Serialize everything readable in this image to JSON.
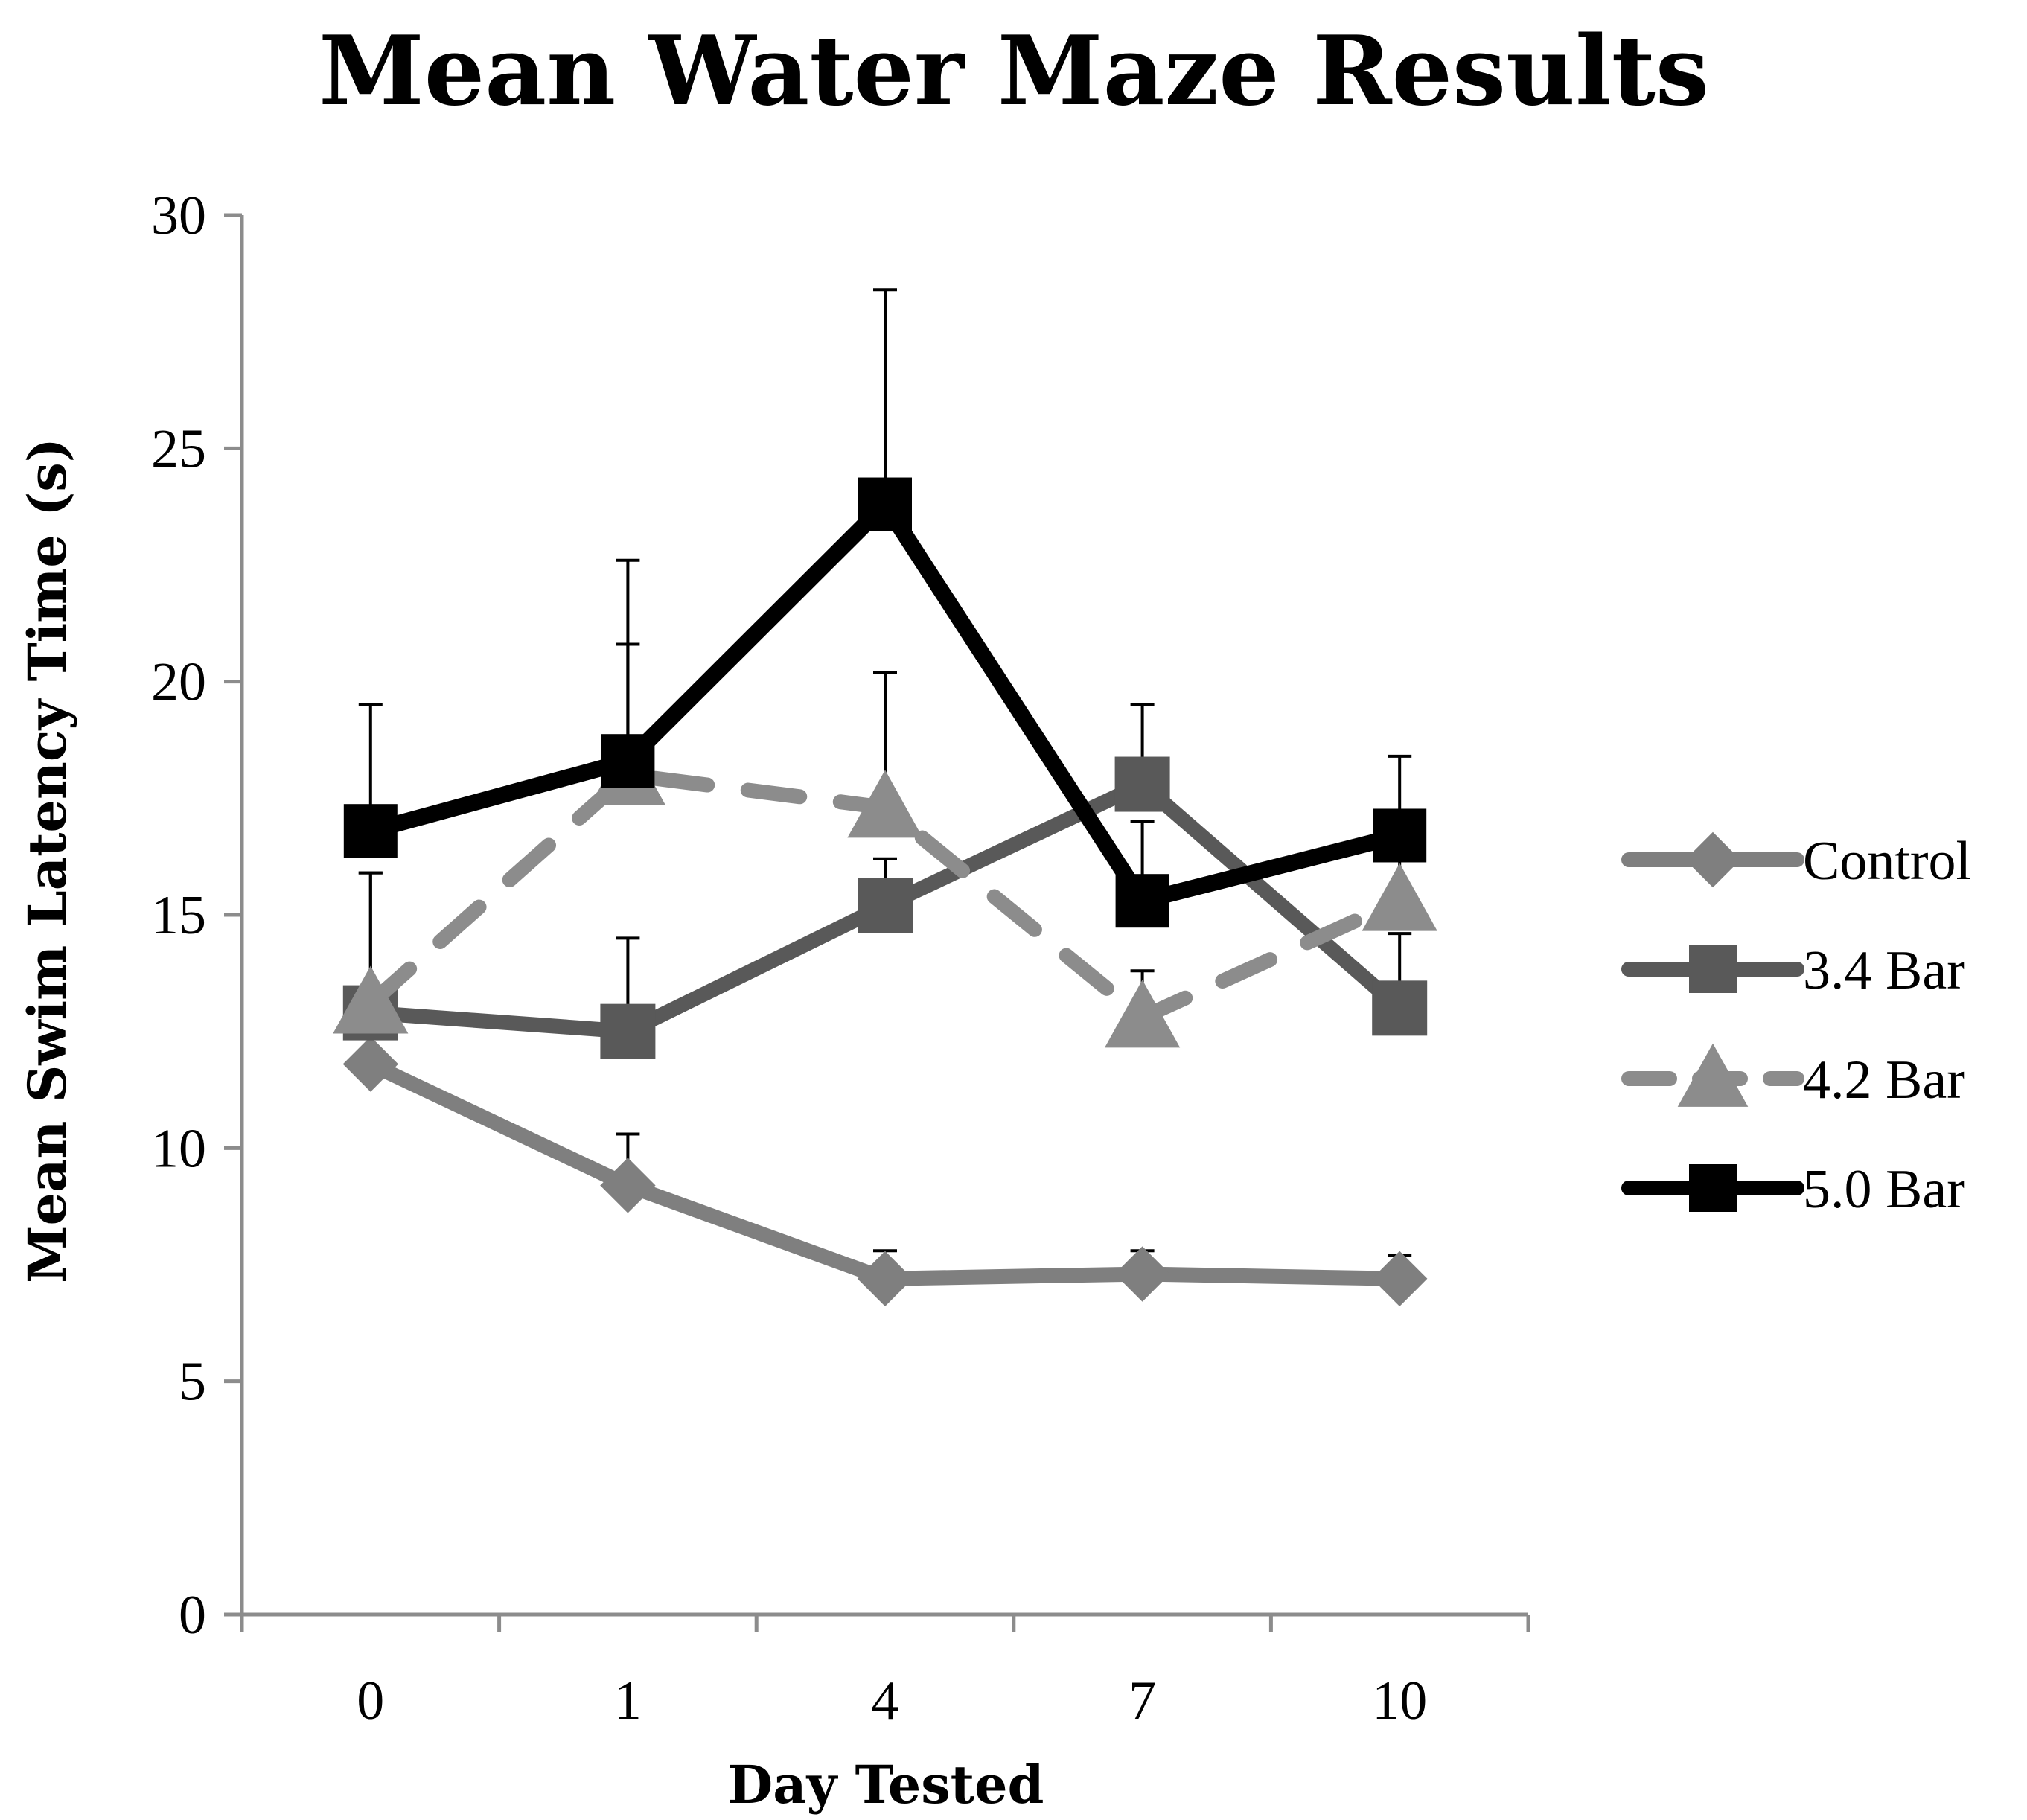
{
  "chart_data": {
    "type": "line",
    "title": "Mean Water Maze Results",
    "xlabel": "Day Tested",
    "ylabel": "Mean Swim Latency Time (s)",
    "categories": [
      "0",
      "1",
      "4",
      "7",
      "10"
    ],
    "ylim": [
      0,
      30
    ],
    "y_ticks": [
      0,
      5,
      10,
      15,
      20,
      25,
      30
    ],
    "y_tick_labels": [
      "0",
      "5",
      "10",
      "15",
      "20",
      "25",
      "30"
    ],
    "grid": false,
    "legend_position": "right",
    "series": [
      {
        "name": "Control",
        "values": [
          11.8,
          9.2,
          7.2,
          7.3,
          7.2
        ],
        "error": [
          0.8,
          1.1,
          0.6,
          0.5,
          0.5
        ],
        "color": "#7f7f7f",
        "marker": "diamond",
        "dash": "solid"
      },
      {
        "name": "3.4 Bar",
        "values": [
          12.9,
          12.5,
          15.2,
          17.8,
          13.0
        ],
        "error": [
          3.0,
          2.0,
          1.0,
          1.7,
          1.6
        ],
        "color": "#595959",
        "marker": "square",
        "dash": "solid"
      },
      {
        "name": "4.2 Bar",
        "values": [
          13.1,
          18.0,
          17.3,
          12.8,
          15.3
        ],
        "error": [
          2.8,
          2.8,
          2.9,
          1.0,
          1.5
        ],
        "color": "#8c8c8c",
        "marker": "triangle",
        "dash": "dashed"
      },
      {
        "name": "5.0 Bar",
        "values": [
          16.8,
          18.3,
          23.8,
          15.3,
          16.7
        ],
        "error": [
          2.7,
          4.3,
          4.6,
          1.7,
          1.7
        ],
        "color": "#000000",
        "marker": "square",
        "dash": "solid"
      }
    ]
  }
}
